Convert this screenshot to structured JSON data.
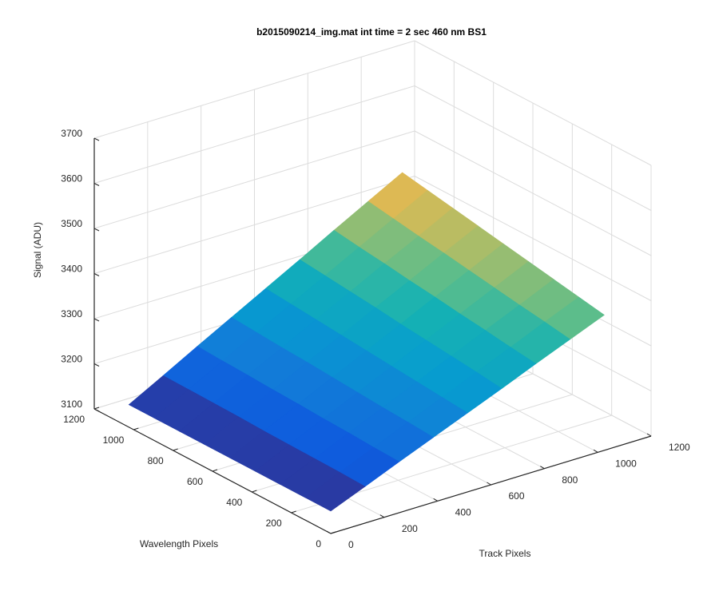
{
  "chart_data": {
    "type": "surface",
    "title": "b2015090214_img.mat int time = 2 sec  460 nm BS1",
    "xlabel": "Track Pixels",
    "ylabel": "Wavelength Pixels",
    "zlabel": "Signal (ADU)",
    "x": [
      0,
      128,
      256,
      384,
      512,
      640,
      768,
      896,
      1024
    ],
    "y": [
      0,
      128,
      256,
      384,
      512,
      640,
      768,
      896,
      1024
    ],
    "z": [
      [
        3150,
        3181,
        3213,
        3244,
        3275,
        3306,
        3338,
        3369,
        3400
      ],
      [
        3150,
        3183,
        3215,
        3248,
        3280,
        3313,
        3345,
        3378,
        3410
      ],
      [
        3150,
        3184,
        3218,
        3251,
        3285,
        3319,
        3353,
        3386,
        3420
      ],
      [
        3150,
        3185,
        3220,
        3255,
        3290,
        3325,
        3360,
        3395,
        3430
      ],
      [
        3150,
        3186,
        3223,
        3259,
        3295,
        3331,
        3368,
        3404,
        3440
      ],
      [
        3150,
        3188,
        3225,
        3263,
        3300,
        3338,
        3375,
        3413,
        3450
      ],
      [
        3150,
        3189,
        3228,
        3266,
        3305,
        3344,
        3383,
        3421,
        3460
      ],
      [
        3150,
        3190,
        3230,
        3270,
        3310,
        3350,
        3390,
        3430,
        3470
      ],
      [
        3150,
        3191,
        3233,
        3274,
        3315,
        3356,
        3398,
        3439,
        3480
      ]
    ],
    "xlim": [
      0,
      1200
    ],
    "ylim": [
      0,
      1200
    ],
    "zlim": [
      3100,
      3700
    ],
    "xticks": [
      0,
      200,
      400,
      600,
      800,
      1000,
      1200
    ],
    "yticks": [
      0,
      200,
      400,
      600,
      800,
      1000,
      1200
    ],
    "zticks": [
      3100,
      3200,
      3300,
      3400,
      3500,
      3600,
      3700
    ],
    "grid": true,
    "colormap": "parula"
  }
}
